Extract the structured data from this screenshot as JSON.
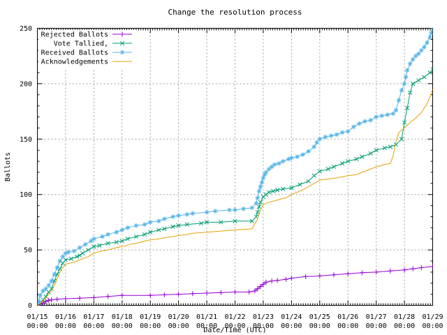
{
  "chart_data": {
    "type": "line",
    "title": "Change the resolution process",
    "xlabel": "Date/Time (UTC)",
    "ylabel": "Ballots",
    "x_unit": "days since 01/15 00:00",
    "xlim": [
      0,
      14
    ],
    "ylim": [
      0,
      250
    ],
    "y_major_ticks": [
      0,
      50,
      100,
      150,
      200,
      250
    ],
    "y_minor_step": 10,
    "x_minor_per_day": 12,
    "grid": true,
    "legend_position": "top-left-inside",
    "axis_color": "#000000",
    "grid_color": "#9e9e9e",
    "background_color": "#ffffff",
    "x_ticks": [
      {
        "date": "01/15",
        "time": "00:00"
      },
      {
        "date": "01/16",
        "time": "00:00"
      },
      {
        "date": "01/17",
        "time": "00:00"
      },
      {
        "date": "01/18",
        "time": "00:00"
      },
      {
        "date": "01/19",
        "time": "00:00"
      },
      {
        "date": "01/20",
        "time": "00:00"
      },
      {
        "date": "01/21",
        "time": "00:00"
      },
      {
        "date": "01/22",
        "time": "00:00"
      },
      {
        "date": "01/23",
        "time": "00:00"
      },
      {
        "date": "01/24",
        "time": "00:00"
      },
      {
        "date": "01/25",
        "time": "00:00"
      },
      {
        "date": "01/26",
        "time": "00:00"
      },
      {
        "date": "01/27",
        "time": "00:00"
      },
      {
        "date": "01/28",
        "time": "00:00"
      },
      {
        "date": "01/29",
        "time": "00:00"
      }
    ],
    "series": [
      {
        "name": "Rejected Ballots",
        "color": "#9400D3",
        "marker": "plus-icon",
        "points": [
          [
            0,
            0
          ],
          [
            0.1,
            1
          ],
          [
            0.2,
            2
          ],
          [
            0.3,
            3.5
          ],
          [
            0.4,
            4.5
          ],
          [
            0.5,
            5
          ],
          [
            0.7,
            5.5
          ],
          [
            1,
            6
          ],
          [
            1.5,
            6.5
          ],
          [
            2,
            7
          ],
          [
            2.5,
            8
          ],
          [
            3,
            9
          ],
          [
            4,
            9
          ],
          [
            4.5,
            9.5
          ],
          [
            5,
            10
          ],
          [
            5.5,
            10.5
          ],
          [
            6,
            11
          ],
          [
            6.5,
            11.5
          ],
          [
            7,
            12
          ],
          [
            7.5,
            12
          ],
          [
            7.7,
            13
          ],
          [
            7.8,
            15
          ],
          [
            7.9,
            17
          ],
          [
            8,
            19
          ],
          [
            8.1,
            21
          ],
          [
            8.3,
            22
          ],
          [
            8.5,
            22.5
          ],
          [
            8.8,
            23.5
          ],
          [
            9,
            24.5
          ],
          [
            9.5,
            26
          ],
          [
            10,
            26.5
          ],
          [
            10.5,
            27.5
          ],
          [
            11,
            28.5
          ],
          [
            11.5,
            29.5
          ],
          [
            12,
            30
          ],
          [
            12.5,
            31
          ],
          [
            13,
            32
          ],
          [
            13.3,
            33
          ],
          [
            13.6,
            34
          ],
          [
            14,
            35
          ]
        ]
      },
      {
        "name": "Vote Tallied,",
        "color": "#009E73",
        "marker": "cross-icon",
        "points": [
          [
            0,
            0
          ],
          [
            0.1,
            2
          ],
          [
            0.2,
            5
          ],
          [
            0.3,
            8
          ],
          [
            0.4,
            12
          ],
          [
            0.5,
            15
          ],
          [
            0.6,
            22
          ],
          [
            0.7,
            28
          ],
          [
            0.8,
            33
          ],
          [
            0.9,
            38
          ],
          [
            1,
            41
          ],
          [
            1.2,
            42
          ],
          [
            1.4,
            44
          ],
          [
            1.5,
            45
          ],
          [
            1.6,
            47
          ],
          [
            1.8,
            50
          ],
          [
            2,
            53
          ],
          [
            2.2,
            54
          ],
          [
            2.5,
            56
          ],
          [
            2.8,
            57
          ],
          [
            3,
            58
          ],
          [
            3.2,
            60
          ],
          [
            3.5,
            62
          ],
          [
            3.8,
            64
          ],
          [
            4,
            66
          ],
          [
            4.3,
            68
          ],
          [
            4.5,
            69
          ],
          [
            4.8,
            71
          ],
          [
            5,
            72
          ],
          [
            5.3,
            73
          ],
          [
            5.8,
            74
          ],
          [
            6,
            75
          ],
          [
            6.5,
            75
          ],
          [
            7,
            76
          ],
          [
            7.6,
            76
          ],
          [
            7.75,
            80
          ],
          [
            7.8,
            84
          ],
          [
            7.85,
            89
          ],
          [
            7.9,
            93
          ],
          [
            8,
            98
          ],
          [
            8.1,
            100
          ],
          [
            8.2,
            102
          ],
          [
            8.35,
            103
          ],
          [
            8.5,
            104
          ],
          [
            8.7,
            105
          ],
          [
            9,
            106
          ],
          [
            9.3,
            109
          ],
          [
            9.6,
            112
          ],
          [
            9.8,
            117
          ],
          [
            10,
            121
          ],
          [
            10.3,
            123
          ],
          [
            10.5,
            125
          ],
          [
            10.8,
            128
          ],
          [
            11,
            130
          ],
          [
            11.3,
            132
          ],
          [
            11.5,
            134
          ],
          [
            11.8,
            137
          ],
          [
            12,
            140
          ],
          [
            12.3,
            142
          ],
          [
            12.5,
            143
          ],
          [
            12.7,
            145
          ],
          [
            12.9,
            150
          ],
          [
            13,
            165
          ],
          [
            13.1,
            178
          ],
          [
            13.2,
            192
          ],
          [
            13.3,
            200
          ],
          [
            13.5,
            203
          ],
          [
            13.7,
            206
          ],
          [
            13.9,
            210
          ],
          [
            14,
            213
          ]
        ]
      },
      {
        "name": "Received Ballots",
        "color": "#56B4E9",
        "marker": "asterisk-icon",
        "points": [
          [
            0,
            0
          ],
          [
            0.05,
            4
          ],
          [
            0.1,
            9
          ],
          [
            0.2,
            13
          ],
          [
            0.3,
            15
          ],
          [
            0.4,
            18
          ],
          [
            0.5,
            22
          ],
          [
            0.6,
            28
          ],
          [
            0.7,
            34
          ],
          [
            0.8,
            40
          ],
          [
            0.9,
            44
          ],
          [
            1,
            47
          ],
          [
            1.1,
            48
          ],
          [
            1.3,
            49
          ],
          [
            1.5,
            52
          ],
          [
            1.7,
            55
          ],
          [
            1.9,
            58
          ],
          [
            2,
            60
          ],
          [
            2.3,
            62
          ],
          [
            2.5,
            64
          ],
          [
            2.8,
            66
          ],
          [
            3,
            68
          ],
          [
            3.2,
            70
          ],
          [
            3.5,
            72
          ],
          [
            3.8,
            73
          ],
          [
            4,
            75
          ],
          [
            4.3,
            76
          ],
          [
            4.5,
            78
          ],
          [
            4.8,
            80
          ],
          [
            5,
            81
          ],
          [
            5.3,
            82
          ],
          [
            5.5,
            83
          ],
          [
            6,
            84
          ],
          [
            6.3,
            85
          ],
          [
            6.8,
            86
          ],
          [
            7,
            86
          ],
          [
            7.3,
            87
          ],
          [
            7.6,
            88
          ],
          [
            7.75,
            92
          ],
          [
            7.8,
            97
          ],
          [
            7.85,
            103
          ],
          [
            7.9,
            107
          ],
          [
            7.95,
            111
          ],
          [
            8,
            115
          ],
          [
            8.05,
            118
          ],
          [
            8.1,
            120
          ],
          [
            8.2,
            123
          ],
          [
            8.3,
            125
          ],
          [
            8.4,
            127
          ],
          [
            8.55,
            128
          ],
          [
            8.7,
            130
          ],
          [
            8.9,
            132
          ],
          [
            9,
            133
          ],
          [
            9.2,
            134
          ],
          [
            9.4,
            136
          ],
          [
            9.6,
            139
          ],
          [
            9.8,
            143
          ],
          [
            9.9,
            147
          ],
          [
            10,
            150
          ],
          [
            10.2,
            152
          ],
          [
            10.4,
            153
          ],
          [
            10.6,
            154
          ],
          [
            10.8,
            156
          ],
          [
            11,
            157
          ],
          [
            11.2,
            161
          ],
          [
            11.4,
            164
          ],
          [
            11.6,
            166
          ],
          [
            11.8,
            167
          ],
          [
            12,
            170
          ],
          [
            12.2,
            171
          ],
          [
            12.4,
            172
          ],
          [
            12.6,
            173
          ],
          [
            12.7,
            176
          ],
          [
            12.8,
            185
          ],
          [
            12.9,
            194
          ],
          [
            13,
            200
          ],
          [
            13.05,
            206
          ],
          [
            13.1,
            212
          ],
          [
            13.2,
            218
          ],
          [
            13.3,
            222
          ],
          [
            13.4,
            225
          ],
          [
            13.5,
            227
          ],
          [
            13.6,
            230
          ],
          [
            13.7,
            233
          ],
          [
            13.8,
            237
          ],
          [
            13.9,
            242
          ],
          [
            13.95,
            246
          ],
          [
            14,
            250
          ]
        ]
      },
      {
        "name": "Acknowledgements",
        "color": "#E69F00",
        "marker": "none",
        "points": [
          [
            0,
            0
          ],
          [
            0.15,
            3
          ],
          [
            0.3,
            7
          ],
          [
            0.4,
            10
          ],
          [
            0.5,
            13
          ],
          [
            0.6,
            18
          ],
          [
            0.7,
            24
          ],
          [
            0.8,
            30
          ],
          [
            0.9,
            34
          ],
          [
            1,
            37
          ],
          [
            1.3,
            39
          ],
          [
            1.5,
            41
          ],
          [
            1.8,
            44
          ],
          [
            2,
            47
          ],
          [
            2.3,
            49
          ],
          [
            2.5,
            50
          ],
          [
            2.8,
            52
          ],
          [
            3,
            53
          ],
          [
            3.3,
            55
          ],
          [
            3.5,
            56
          ],
          [
            3.8,
            58
          ],
          [
            4,
            59
          ],
          [
            4.3,
            60
          ],
          [
            4.5,
            61
          ],
          [
            4.8,
            62
          ],
          [
            5,
            63
          ],
          [
            5.3,
            64
          ],
          [
            5.5,
            65
          ],
          [
            6,
            66
          ],
          [
            6.5,
            67
          ],
          [
            7,
            68
          ],
          [
            7.6,
            69
          ],
          [
            7.8,
            78
          ],
          [
            7.9,
            86
          ],
          [
            8,
            91
          ],
          [
            8.2,
            93
          ],
          [
            8.5,
            95
          ],
          [
            8.8,
            97
          ],
          [
            9,
            100
          ],
          [
            9.3,
            103
          ],
          [
            9.6,
            107
          ],
          [
            9.8,
            110
          ],
          [
            10,
            113
          ],
          [
            10.3,
            114
          ],
          [
            10.6,
            115
          ],
          [
            11,
            117
          ],
          [
            11.3,
            118
          ],
          [
            11.6,
            121
          ],
          [
            12,
            125
          ],
          [
            12.3,
            127
          ],
          [
            12.5,
            128
          ],
          [
            12.6,
            135
          ],
          [
            12.7,
            148
          ],
          [
            12.8,
            156
          ],
          [
            13,
            160
          ],
          [
            13.2,
            165
          ],
          [
            13.4,
            169
          ],
          [
            13.6,
            174
          ],
          [
            13.8,
            182
          ],
          [
            13.9,
            188
          ],
          [
            14,
            195
          ]
        ]
      }
    ]
  }
}
